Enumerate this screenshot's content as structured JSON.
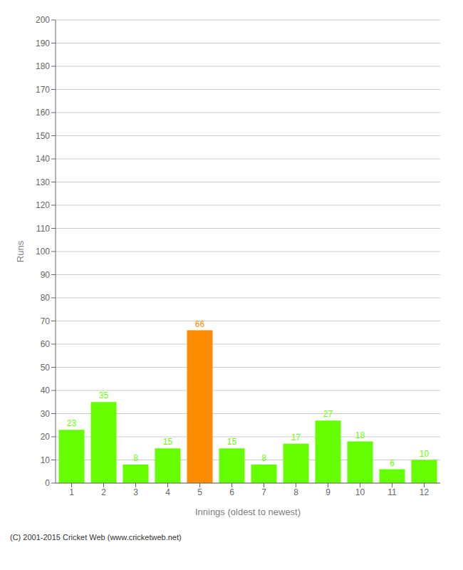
{
  "chart_data": {
    "type": "bar",
    "xlabel": "Innings (oldest to newest)",
    "ylabel": "Runs",
    "categories": [
      1,
      2,
      3,
      4,
      5,
      6,
      7,
      8,
      9,
      10,
      11,
      12
    ],
    "values": [
      23,
      35,
      8,
      15,
      66,
      15,
      8,
      17,
      27,
      18,
      6,
      10
    ],
    "colors": [
      "#66ff00",
      "#66ff00",
      "#66ff00",
      "#66ff00",
      "#ff8c00",
      "#66ff00",
      "#66ff00",
      "#66ff00",
      "#66ff00",
      "#66ff00",
      "#66ff00",
      "#66ff00"
    ],
    "ylim": [
      0,
      200
    ],
    "yticks": [
      0,
      10,
      20,
      30,
      40,
      50,
      60,
      70,
      80,
      90,
      100,
      110,
      120,
      130,
      140,
      150,
      160,
      170,
      180,
      190,
      200
    ],
    "grid": true,
    "data_labels": true,
    "annotations": [
      "(C) 2001-2015 Cricket Web (www.cricketweb.net)"
    ]
  }
}
